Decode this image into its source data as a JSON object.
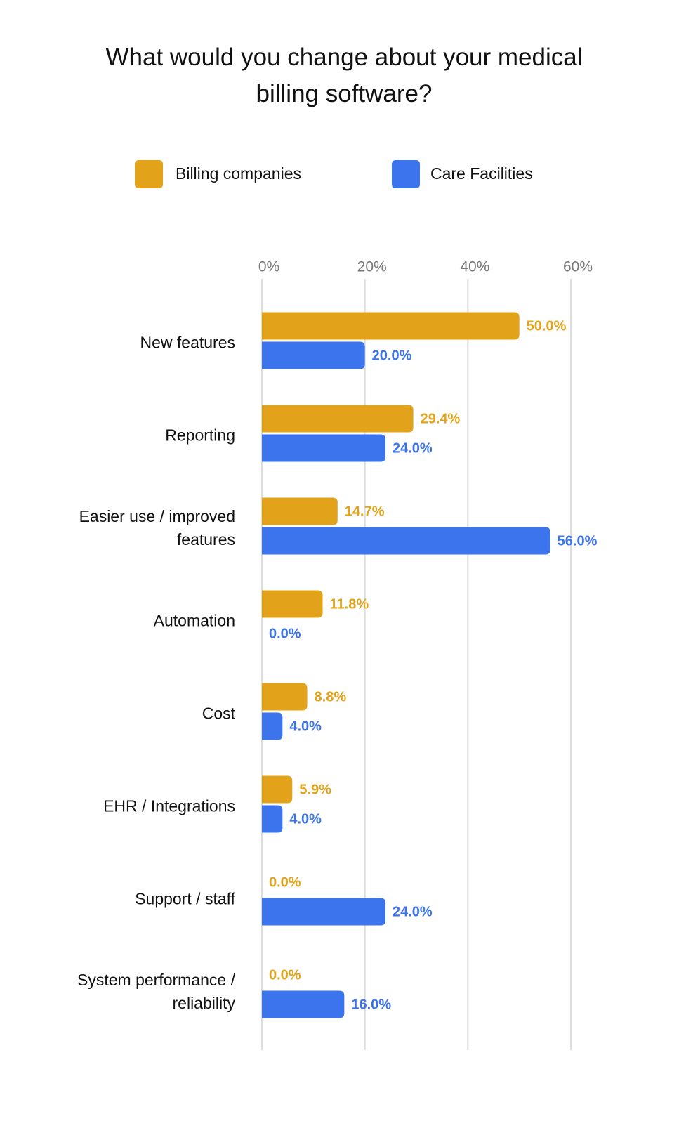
{
  "chart_data": {
    "type": "bar",
    "orientation": "horizontal",
    "title": "What would you change about your medical billing software?",
    "categories": [
      "New features",
      "Reporting",
      "Easier use / improved features",
      "Automation",
      "Cost",
      "EHR / Integrations",
      "Support / staff",
      "System performance / reliability"
    ],
    "series": [
      {
        "name": "Billing companies",
        "color": "#E2A31B",
        "values": [
          50.0,
          29.4,
          14.7,
          11.8,
          8.8,
          5.9,
          0.0,
          0.0
        ],
        "value_labels": [
          "50.0%",
          "29.4%",
          "14.7%",
          "11.8%",
          "8.8%",
          "5.9%",
          "0.0%",
          "0.0%"
        ]
      },
      {
        "name": "Care Facilities",
        "color": "#3B74EC",
        "values": [
          20.0,
          24.0,
          56.0,
          0.0,
          4.0,
          4.0,
          24.0,
          16.0
        ],
        "value_labels": [
          "20.0%",
          "24.0%",
          "56.0%",
          "0.0%",
          "4.0%",
          "4.0%",
          "24.0%",
          "16.0%"
        ]
      }
    ],
    "xlim": [
      0,
      60
    ],
    "xticks": [
      {
        "value": 0,
        "label": "0%"
      },
      {
        "value": 20,
        "label": "20%"
      },
      {
        "value": 40,
        "label": "40%"
      },
      {
        "value": 60,
        "label": "60%"
      }
    ],
    "grid": true,
    "legend": "top"
  }
}
